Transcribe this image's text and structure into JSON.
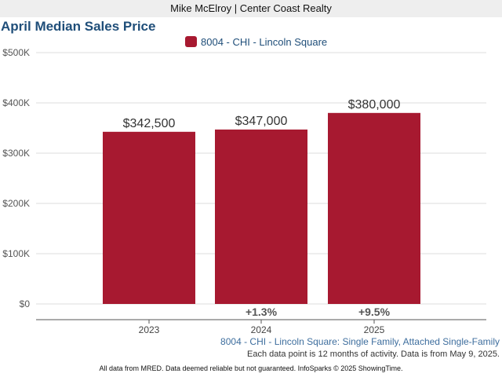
{
  "header": {
    "text": "Mike McElroy | Center Coast Realty"
  },
  "chart_data": {
    "type": "bar",
    "title": "April Median Sales Price",
    "categories": [
      "2023",
      "2024",
      "2025"
    ],
    "series": [
      {
        "name": "8004 - CHI - Lincoln Square",
        "values": [
          342500,
          347000,
          380000
        ]
      }
    ],
    "data_labels": [
      "$342,500",
      "$347,000",
      "$380,000"
    ],
    "change_labels": [
      "",
      "+1.3%",
      "+9.5%"
    ],
    "y_ticks": [
      0,
      100000,
      200000,
      300000,
      400000,
      500000
    ],
    "y_tick_labels": [
      "$0",
      "$100K",
      "$200K",
      "$300K",
      "$400K",
      "$500K"
    ],
    "ylim": [
      0,
      500000
    ],
    "grid": true,
    "legend_position": "top-center",
    "xlabel": "",
    "ylabel": ""
  },
  "subtitle": "8004 - CHI - Lincoln Square: Single Family, Attached Single-Family",
  "note": "Each data point is 12 months of activity. Data is from May 9, 2025.",
  "footer": "All data from MRED. Data deemed reliable but not guaranteed. InfoSparks © 2025 ShowingTime.",
  "colors": {
    "bar": "#a71930",
    "title": "#1f4e79",
    "subtitle": "#3e6e9e"
  }
}
